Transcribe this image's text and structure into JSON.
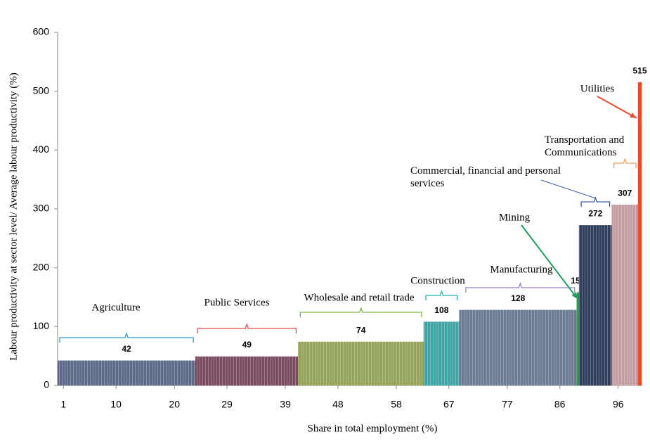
{
  "chart_data": {
    "type": "histogram",
    "xlabel": "Share in total employment (%)",
    "ylabel": "Labour productivity at sector level/ Average labour productivity (%)",
    "categories": [
      "Agriculture",
      "Public Services",
      "Wholesale and retail trade",
      "Construction",
      "Manufacturing",
      "Mining",
      "Commercial, financial and personal services",
      "Transportation and Communications",
      "Utilities"
    ],
    "bins": [
      0,
      23.6,
      41.2,
      62.7,
      68.8,
      88.9,
      89.3,
      94.9,
      99.4,
      100
    ],
    "values": [
      42,
      49,
      74,
      108,
      128,
      158,
      272,
      307,
      515
    ],
    "colors": [
      "#5b6a8a",
      "#7d4a60",
      "#93a452",
      "#3ca7a7",
      "#6b7a95",
      "#2e9e4f",
      "#2f3f5f",
      "#c59ba2",
      "#ec4a26"
    ],
    "xlim": [
      0,
      100
    ],
    "xticks": [
      1,
      10,
      20,
      29,
      39,
      48,
      58,
      67,
      77,
      86,
      96
    ],
    "ylim": [
      0,
      600
    ],
    "yticks": [
      0,
      100,
      200,
      300,
      400,
      500,
      600
    ],
    "grid": false
  }
}
